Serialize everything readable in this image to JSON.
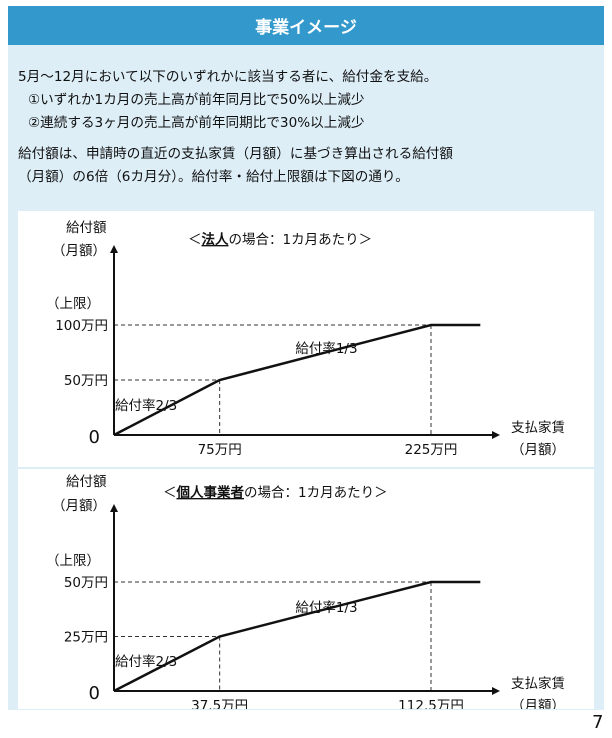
{
  "header": {
    "title": "事業イメージ"
  },
  "intro": {
    "line1": "5月～12月において以下のいずれかに該当する者に、給付金を支給。",
    "cond1": "①いずれか1カ月の売上高が前年同月比で50%以上減少",
    "cond2": "②連続する3ヶ月の売上高が前年同期比で30%以上減少",
    "line2": "給付額は、申請時の直近の支払家賃（月額）に基づき算出される給付額",
    "line3": "（月額）の6倍（6カ月分）。給付率・給付上限額は下図の通り。"
  },
  "chart_data": [
    {
      "type": "line",
      "title_prefix": "＜",
      "title_emphasis": "法人",
      "title_suffix": "の場合：1カ月あたり＞",
      "ylabel_line1": "給付額",
      "ylabel_line2": "（月額）",
      "xlabel_line1": "支払家賃",
      "xlabel_line2": "（月額）",
      "origin_label": "0",
      "upper_limit_label": "（上限）",
      "x_ticks": [
        {
          "value": 75,
          "label": "75万円"
        },
        {
          "value": 225,
          "label": "225万円"
        }
      ],
      "y_ticks": [
        {
          "value": 50,
          "label": "50万円"
        },
        {
          "value": 100,
          "label": "100万円"
        }
      ],
      "points": [
        {
          "x": 0,
          "y": 0
        },
        {
          "x": 75,
          "y": 50
        },
        {
          "x": 225,
          "y": 100
        },
        {
          "x": 260,
          "y": 100
        }
      ],
      "segment_labels": [
        "給付率2/3",
        "給付率1/3"
      ]
    },
    {
      "type": "line",
      "title_prefix": "＜",
      "title_emphasis": "個人事業者",
      "title_suffix": "の場合：1カ月あたり＞",
      "ylabel_line1": "給付額",
      "ylabel_line2": "（月額）",
      "xlabel_line1": "支払家賃",
      "xlabel_line2": "（月額）",
      "origin_label": "0",
      "upper_limit_label": "（上限）",
      "x_ticks": [
        {
          "value": 37.5,
          "label": "37.5万円"
        },
        {
          "value": 112.5,
          "label": "112.5万円"
        }
      ],
      "y_ticks": [
        {
          "value": 25,
          "label": "25万円"
        },
        {
          "value": 50,
          "label": "50万円"
        }
      ],
      "points": [
        {
          "x": 0,
          "y": 0
        },
        {
          "x": 37.5,
          "y": 25
        },
        {
          "x": 112.5,
          "y": 50
        },
        {
          "x": 130,
          "y": 50
        }
      ],
      "segment_labels": [
        "給付率2/3",
        "給付率1/3"
      ]
    }
  ],
  "page_number": "7"
}
